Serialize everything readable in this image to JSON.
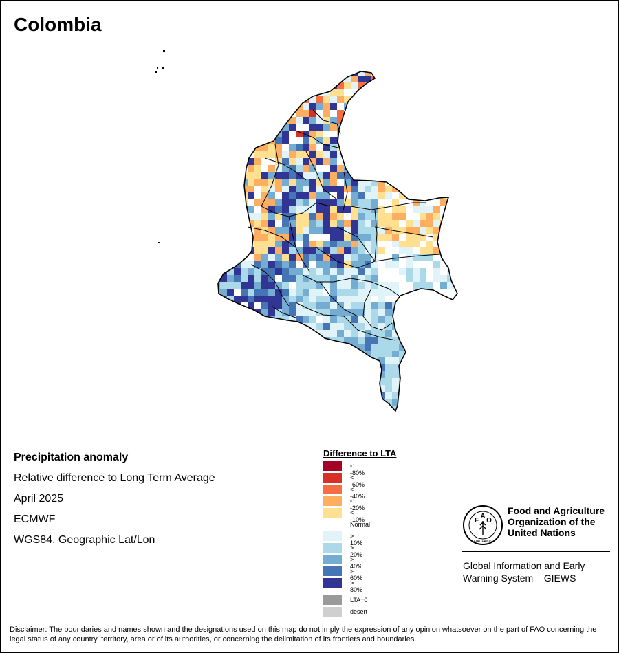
{
  "page": {
    "title": "Colombia"
  },
  "info": {
    "line1": "Precipitation anomaly",
    "line2": "Relative difference to Long Term Average",
    "line3": "April 2025",
    "line4": "ECMWF",
    "line5": "WGS84, Geographic Lat/Lon"
  },
  "legend": {
    "title": "Difference to LTA",
    "items": [
      {
        "label": "< -80%",
        "color": "#a50026"
      },
      {
        "label": "< -60%",
        "color": "#d73027"
      },
      {
        "label": "< -40%",
        "color": "#f46d43"
      },
      {
        "label": "< -20%",
        "color": "#fdae61"
      },
      {
        "label": "< -10%",
        "color": "#fee090"
      },
      {
        "label": "Normal",
        "color": "#ffffff"
      },
      {
        "label": "> 10%",
        "color": "#e0f3f8"
      },
      {
        "label": "> 20%",
        "color": "#abd9e9"
      },
      {
        "label": "> 40%",
        "color": "#74add1"
      },
      {
        "label": "> 60%",
        "color": "#4575b4"
      },
      {
        "label": "> 80%",
        "color": "#313695"
      }
    ],
    "extra": [
      {
        "label": "LTA=0",
        "color": "#9a9a9a"
      },
      {
        "label": "desert",
        "color": "#cfcfcf"
      }
    ]
  },
  "logo": {
    "org_name": "Food and Agriculture Organization of the United Nations",
    "system_name": "Global Information and Early Warning System – GIEWS",
    "emblem_text": "FIAT PANIS"
  },
  "disclaimer": "Disclaimer: The boundaries and names shown and the designations used on this map do not imply the expression of any opinion whatsoever on the part of FAO concerning the legal status of any country, territory, area or of its authorities, or concerning the delimitation of its frontiers and boundaries."
}
